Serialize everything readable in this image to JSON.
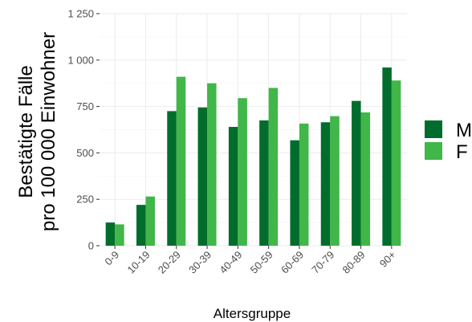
{
  "chart_data": {
    "type": "bar",
    "categories": [
      "0-9",
      "10-19",
      "20-29",
      "30-39",
      "40-49",
      "50-59",
      "60-69",
      "70-79",
      "80-89",
      "90+"
    ],
    "series": [
      {
        "name": "M",
        "values": [
          125,
          220,
          725,
          745,
          640,
          675,
          568,
          665,
          780,
          960
        ],
        "color": "#006d2c"
      },
      {
        "name": "F",
        "values": [
          115,
          265,
          910,
          875,
          795,
          850,
          658,
          698,
          718,
          890
        ],
        "color": "#41b649"
      }
    ],
    "xlabel": "Altersgruppe",
    "ylabel_line1": "Bestätigte Fälle",
    "ylabel_line2": "pro 100 000 Einwohner",
    "ylim": [
      0,
      1250
    ],
    "yticks": [
      0,
      250,
      500,
      750,
      1000,
      1250
    ],
    "ytick_labels": [
      "0",
      "250",
      "500",
      "750",
      "1 000",
      "1 250"
    ],
    "grid": true,
    "legend_position": "right"
  }
}
